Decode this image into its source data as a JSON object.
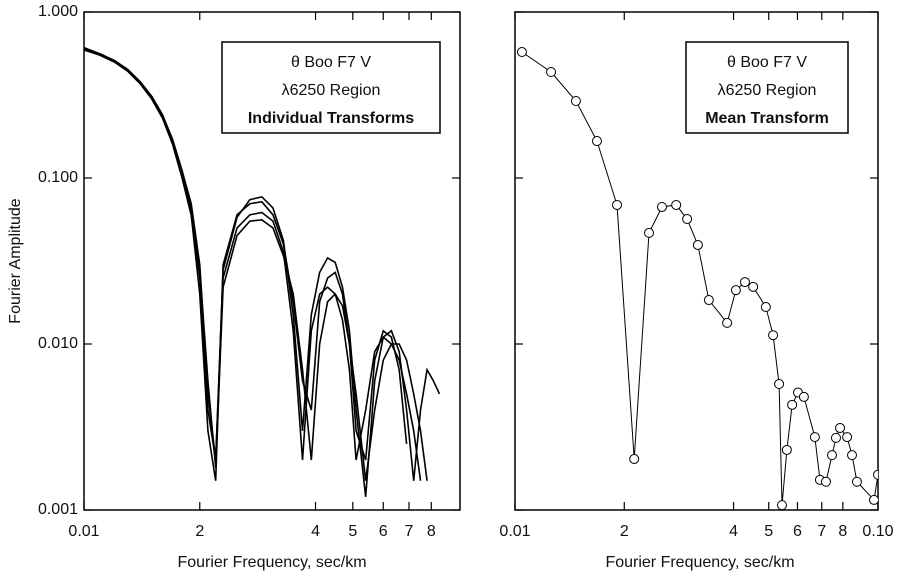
{
  "chart_data": [
    {
      "type": "line",
      "x_label": "Fourier Frequency, sec/km",
      "y_label": "Fourier Amplitude",
      "annotations": [
        "θ Boo    F7 V",
        "λ6250 Region",
        "Individual Transforms"
      ],
      "xscale": "log",
      "yscale": "log",
      "color": "#000000",
      "xlim": [
        0.01,
        0.095
      ],
      "ylim": [
        0.001,
        1
      ],
      "xticks": [
        {
          "value": 0.01,
          "label": "0.01"
        },
        {
          "value": 0.02,
          "label": "2"
        },
        {
          "value": 0.04,
          "label": "4"
        },
        {
          "value": 0.05,
          "label": "5"
        },
        {
          "value": 0.06,
          "label": "6"
        },
        {
          "value": 0.07,
          "label": "7"
        },
        {
          "value": 0.08,
          "label": "8"
        }
      ],
      "yticks": [
        {
          "value": 1,
          "label": "1.000"
        },
        {
          "value": 0.1,
          "label": "0.100"
        },
        {
          "value": 0.01,
          "label": "0.010"
        },
        {
          "value": 0.001,
          "label": "0.001"
        }
      ],
      "x": [
        0.01,
        0.011,
        0.012,
        0.013,
        0.014,
        0.015,
        0.016,
        0.017,
        0.018,
        0.019,
        0.02,
        0.021,
        0.022,
        0.023,
        0.025,
        0.027,
        0.029,
        0.031,
        0.033,
        0.035,
        0.037,
        0.039,
        0.041,
        0.043,
        0.045,
        0.047,
        0.049,
        0.051,
        0.054,
        0.057,
        0.06,
        0.063,
        0.066,
        0.069,
        0.072,
        0.075,
        0.078,
        0.081,
        0.084
      ],
      "series": [
        {
          "values": [
            0.61,
            0.56,
            0.51,
            0.45,
            0.38,
            0.31,
            0.24,
            0.17,
            0.11,
            0.07,
            0.03,
            0.005,
            0.002,
            0.028,
            0.058,
            0.074,
            0.077,
            0.066,
            0.042,
            0.015,
            0.003,
            0.015,
            0.027,
            0.033,
            0.031,
            0.022,
            0.012,
            0.004,
            0.0012,
            0.006,
            0.011,
            0.012,
            0.009,
            0.004,
            0.0015,
            0.004,
            0.007,
            0.006,
            0.005
          ]
        },
        {
          "values": [
            0.6,
            0.55,
            0.5,
            0.44,
            0.37,
            0.3,
            0.23,
            0.16,
            0.1,
            0.06,
            0.02,
            0.003,
            0.0015,
            0.03,
            0.06,
            0.07,
            0.072,
            0.06,
            0.04,
            0.018,
            0.006,
            0.004,
            0.018,
            0.025,
            0.027,
            0.02,
            0.01,
            0.003,
            0.002,
            0.008,
            0.012,
            0.011,
            0.007,
            0.0025,
            null,
            null,
            null,
            null,
            null
          ]
        },
        {
          "values": [
            0.59,
            0.55,
            0.5,
            0.44,
            0.37,
            0.3,
            0.23,
            0.16,
            0.1,
            0.06,
            0.025,
            0.004,
            0.002,
            0.025,
            0.05,
            0.06,
            0.062,
            0.055,
            0.036,
            0.012,
            0.002,
            0.012,
            0.02,
            0.022,
            0.02,
            0.014,
            0.007,
            0.002,
            0.004,
            0.009,
            0.011,
            0.01,
            0.008,
            0.005,
            0.003,
            0.0015,
            null,
            null,
            null
          ]
        },
        {
          "values": [
            0.6,
            0.56,
            0.51,
            0.45,
            0.38,
            0.31,
            0.24,
            0.17,
            0.11,
            0.065,
            0.028,
            0.006,
            0.0018,
            0.022,
            0.045,
            0.055,
            0.056,
            0.05,
            0.034,
            0.02,
            0.007,
            0.002,
            0.01,
            0.018,
            0.02,
            0.017,
            0.01,
            0.005,
            0.0015,
            0.004,
            0.008,
            0.01,
            0.01,
            0.008,
            0.005,
            0.003,
            0.0015,
            null,
            null
          ]
        }
      ]
    },
    {
      "type": "line",
      "x_label": "Fourier Frequency, sec/km",
      "annotations": [
        "θ Boo    F7 V",
        "λ6250 Region",
        "Mean Transform"
      ],
      "xscale": "log",
      "yscale": "log",
      "color": "#000000",
      "marker": "circle",
      "xlim": [
        0.01,
        0.1
      ],
      "ylim": [
        0.001,
        1
      ],
      "xticks": [
        {
          "value": 0.01,
          "label": "0.01"
        },
        {
          "value": 0.02,
          "label": "2"
        },
        {
          "value": 0.04,
          "label": "4"
        },
        {
          "value": 0.05,
          "label": "5"
        },
        {
          "value": 0.06,
          "label": "6"
        },
        {
          "value": 0.07,
          "label": "7"
        },
        {
          "value": 0.08,
          "label": "8"
        },
        {
          "value": 0.1,
          "label": "0.10"
        }
      ],
      "yticks": [
        1,
        0.1,
        0.01,
        0.001
      ],
      "x": [
        0.01045,
        0.01257,
        0.01472,
        0.01682,
        0.0191,
        0.0213,
        0.0234,
        0.0254,
        0.0278,
        0.0298,
        0.0319,
        0.0342,
        0.0384,
        0.0406,
        0.043,
        0.0453,
        0.0491,
        0.0514,
        0.0534,
        0.0544,
        0.0561,
        0.058,
        0.0602,
        0.0625,
        0.067,
        0.0692,
        0.0719,
        0.0747,
        0.0766,
        0.0786,
        0.0822,
        0.0848,
        0.0875,
        0.0975,
        0.1
      ],
      "values": [
        0.574,
        0.435,
        0.291,
        0.167,
        0.0688,
        0.00203,
        0.0467,
        0.0669,
        0.0688,
        0.0566,
        0.0395,
        0.0184,
        0.0134,
        0.0211,
        0.0236,
        0.0221,
        0.0167,
        0.0113,
        0.00574,
        0.00107,
        0.0023,
        0.0043,
        0.0051,
        0.0048,
        0.00275,
        0.00152,
        0.00148,
        0.00214,
        0.00272,
        0.00312,
        0.00275,
        0.00214,
        0.00148,
        0.00115,
        0.00163
      ]
    }
  ]
}
